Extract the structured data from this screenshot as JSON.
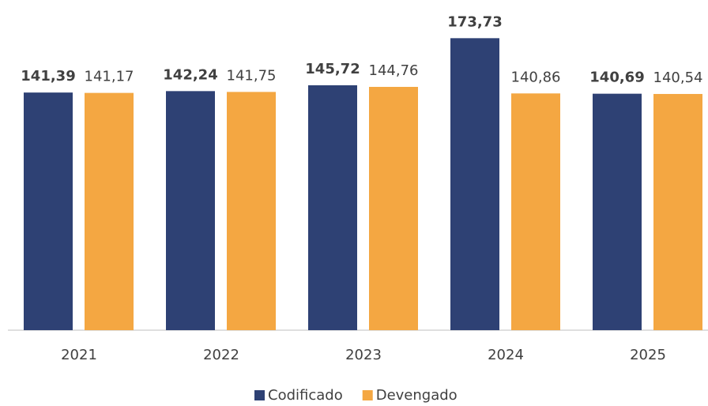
{
  "chart_data": {
    "type": "bar",
    "categories": [
      "2021",
      "2022",
      "2023",
      "2024",
      "2025"
    ],
    "series": [
      {
        "name": "Codificado",
        "color": "#2e4174",
        "values": [
          141.39,
          142.24,
          145.72,
          173.73,
          140.69
        ],
        "value_labels": [
          "141,39",
          "142,24",
          "145,72",
          "173,73",
          "140,69"
        ]
      },
      {
        "name": "Devengado",
        "color": "#f4a742",
        "values": [
          141.17,
          141.75,
          144.76,
          140.86,
          140.54
        ],
        "value_labels": [
          "141,17",
          "141,75",
          "144,76",
          "140,86",
          "140,54"
        ]
      }
    ],
    "ylim": [
      0,
      180
    ],
    "grid": false,
    "legend": "bottom"
  }
}
